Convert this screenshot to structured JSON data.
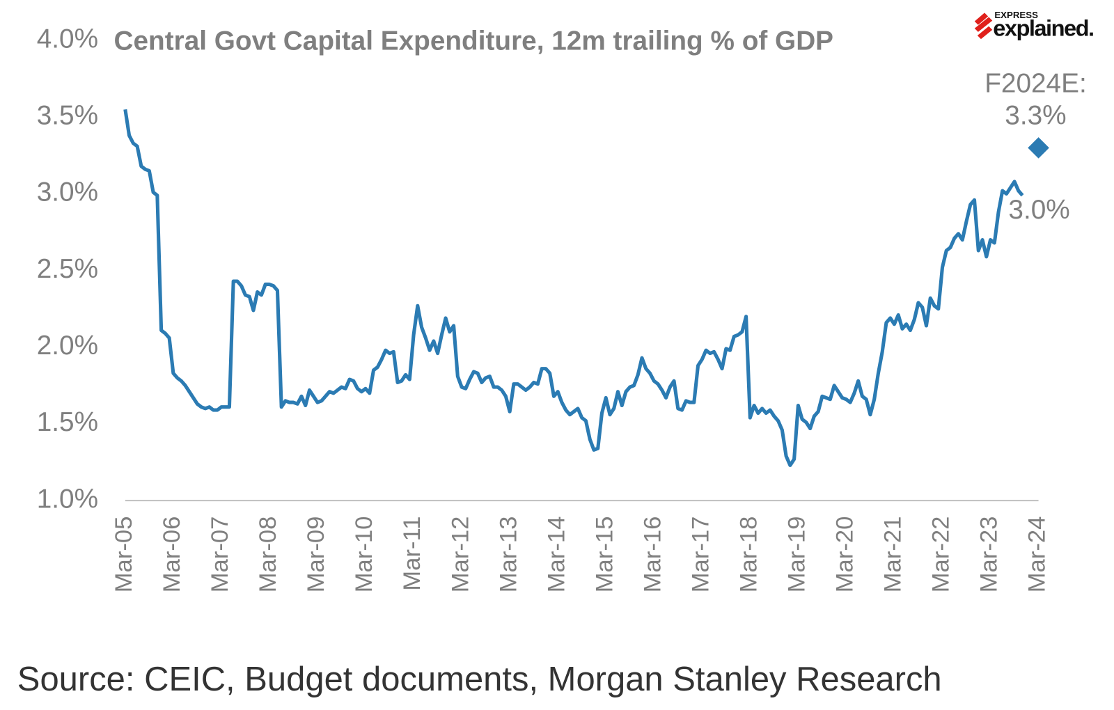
{
  "chart_data": {
    "type": "line",
    "title": "Central Govt Capital Expenditure, 12m trailing % of GDP",
    "source": "Source: CEIC, Budget documents, Morgan Stanley Research",
    "logo": {
      "top": "EXPRESS",
      "main": "explained."
    },
    "annotations": [
      "F2024E:",
      "3.3%",
      "3.0%"
    ],
    "ylim": [
      1.0,
      4.0
    ],
    "yticks": [
      {
        "value": 1.0,
        "label": "1.0%"
      },
      {
        "value": 1.5,
        "label": "1.5%"
      },
      {
        "value": 2.0,
        "label": "2.0%"
      },
      {
        "value": 2.5,
        "label": "2.5%"
      },
      {
        "value": 3.0,
        "label": "3.0%"
      },
      {
        "value": 3.5,
        "label": "3.5%"
      },
      {
        "value": 4.0,
        "label": "4.0%"
      }
    ],
    "categories": [
      "Mar-05",
      null,
      null,
      null,
      null,
      null,
      null,
      null,
      null,
      null,
      null,
      null,
      "Mar-06",
      null,
      null,
      null,
      null,
      null,
      null,
      null,
      null,
      null,
      null,
      null,
      "Mar-07",
      null,
      null,
      null,
      null,
      null,
      null,
      null,
      null,
      null,
      null,
      null,
      "Mar-08",
      null,
      null,
      null,
      null,
      null,
      null,
      null,
      null,
      null,
      null,
      null,
      "Mar-09",
      null,
      null,
      null,
      null,
      null,
      null,
      null,
      null,
      null,
      null,
      null,
      "Mar-10",
      null,
      null,
      null,
      null,
      null,
      null,
      null,
      null,
      null,
      null,
      null,
      "Mar-11",
      null,
      null,
      null,
      null,
      null,
      null,
      null,
      null,
      null,
      null,
      null,
      "Mar-12",
      null,
      null,
      null,
      null,
      null,
      null,
      null,
      null,
      null,
      null,
      null,
      "Mar-13",
      null,
      null,
      null,
      null,
      null,
      null,
      null,
      null,
      null,
      null,
      null,
      "Mar-14",
      null,
      null,
      null,
      null,
      null,
      null,
      null,
      null,
      null,
      null,
      null,
      "Mar-15",
      null,
      null,
      null,
      null,
      null,
      null,
      null,
      null,
      null,
      null,
      null,
      "Mar-16",
      null,
      null,
      null,
      null,
      null,
      null,
      null,
      null,
      null,
      null,
      null,
      "Mar-17",
      null,
      null,
      null,
      null,
      null,
      null,
      null,
      null,
      null,
      null,
      null,
      "Mar-18",
      null,
      null,
      null,
      null,
      null,
      null,
      null,
      null,
      null,
      null,
      null,
      "Mar-19",
      null,
      null,
      null,
      null,
      null,
      null,
      null,
      null,
      null,
      null,
      null,
      "Mar-20",
      null,
      null,
      null,
      null,
      null,
      null,
      null,
      null,
      null,
      null,
      null,
      "Mar-21",
      null,
      null,
      null,
      null,
      null,
      null,
      null,
      null,
      null,
      null,
      null,
      "Mar-22",
      null,
      null,
      null,
      null,
      null,
      null,
      null,
      null,
      null,
      null,
      null,
      "Mar-23",
      null,
      null,
      null,
      null,
      null,
      null,
      null,
      null,
      null,
      null,
      null,
      "Mar-24"
    ],
    "series": [
      {
        "color": "#2b7bb3",
        "dashed": false,
        "values": [
          3.55,
          3.38,
          3.33,
          3.31,
          3.18,
          3.16,
          3.15,
          3.01,
          2.99,
          2.11,
          2.09,
          2.06,
          1.83,
          1.8,
          1.78,
          1.75,
          1.71,
          1.67,
          1.63,
          1.61,
          1.6,
          1.61,
          1.59,
          1.59,
          1.61,
          1.61,
          1.61,
          2.43,
          2.43,
          2.4,
          2.34,
          2.33,
          2.24,
          2.36,
          2.34,
          2.41,
          2.41,
          2.4,
          2.37,
          1.61,
          1.65,
          1.64,
          1.64,
          1.63,
          1.68,
          1.62,
          1.72,
          1.68,
          1.64,
          1.65,
          1.68,
          1.71,
          1.7,
          1.72,
          1.74,
          1.73,
          1.79,
          1.78,
          1.73,
          1.71,
          1.73,
          1.7,
          1.85,
          1.87,
          1.92,
          1.98,
          1.96,
          1.97,
          1.77,
          1.78,
          1.82,
          1.79,
          2.08,
          2.27,
          2.13,
          2.06,
          1.98,
          2.04,
          1.96,
          2.08,
          2.19,
          2.1,
          2.14,
          1.81,
          1.74,
          1.73,
          1.79,
          1.84,
          1.83,
          1.77,
          1.8,
          1.81,
          1.74,
          1.74,
          1.72,
          1.68,
          1.58,
          1.76,
          1.76,
          1.74,
          1.72,
          1.74,
          1.77,
          1.76,
          1.86,
          1.86,
          1.83,
          1.68,
          1.71,
          1.64,
          1.59,
          1.56,
          1.58,
          1.6,
          1.54,
          1.52,
          1.4,
          1.33,
          1.34,
          1.57,
          1.67,
          1.56,
          1.6,
          1.71,
          1.62,
          1.71,
          1.74,
          1.75,
          1.82,
          1.93,
          1.86,
          1.83,
          1.78,
          1.76,
          1.72,
          1.67,
          1.74,
          1.78,
          1.6,
          1.59,
          1.65,
          1.64,
          1.64,
          1.88,
          1.92,
          1.98,
          1.96,
          1.97,
          1.92,
          1.86,
          1.99,
          1.98,
          2.07,
          2.08,
          2.1,
          2.2,
          1.54,
          1.62,
          1.57,
          1.6,
          1.57,
          1.59,
          1.55,
          1.52,
          1.46,
          1.29,
          1.23,
          1.27,
          1.62,
          1.53,
          1.51,
          1.47,
          1.55,
          1.58,
          1.68,
          1.67,
          1.66,
          1.75,
          1.71,
          1.67,
          1.66,
          1.64,
          1.7,
          1.78,
          1.68,
          1.66,
          1.56,
          1.66,
          1.83,
          1.97,
          2.16,
          2.19,
          2.15,
          2.21,
          2.12,
          2.15,
          2.11,
          2.18,
          2.29,
          2.26,
          2.14,
          2.32,
          2.27,
          2.25,
          2.52,
          2.63,
          2.65,
          2.71,
          2.74,
          2.7,
          2.82,
          2.93,
          2.96,
          2.63,
          2.7,
          2.59,
          2.7,
          2.68,
          2.88,
          3.02,
          3.0,
          3.04,
          3.08,
          3.02,
          2.99,
          null,
          null,
          null,
          null
        ]
      },
      {
        "color": "#2b7bb3",
        "dashed": true,
        "marker": "diamond",
        "values": [
          null,
          null,
          null,
          null,
          null,
          null,
          null,
          null,
          null,
          null,
          null,
          null,
          null,
          null,
          null,
          null,
          null,
          null,
          null,
          null,
          null,
          null,
          null,
          null,
          null,
          null,
          null,
          null,
          null,
          null,
          null,
          null,
          null,
          null,
          null,
          null,
          null,
          null,
          null,
          null,
          null,
          null,
          null,
          null,
          null,
          null,
          null,
          null,
          null,
          null,
          null,
          null,
          null,
          null,
          null,
          null,
          null,
          null,
          null,
          null,
          null,
          null,
          null,
          null,
          null,
          null,
          null,
          null,
          null,
          null,
          null,
          null,
          null,
          null,
          null,
          null,
          null,
          null,
          null,
          null,
          null,
          null,
          null,
          null,
          null,
          null,
          null,
          null,
          null,
          null,
          null,
          null,
          null,
          null,
          null,
          null,
          null,
          null,
          null,
          null,
          null,
          null,
          null,
          null,
          null,
          null,
          null,
          null,
          null,
          null,
          null,
          null,
          null,
          null,
          null,
          null,
          null,
          null,
          null,
          null,
          null,
          null,
          null,
          null,
          null,
          null,
          null,
          null,
          null,
          null,
          null,
          null,
          null,
          null,
          null,
          null,
          null,
          null,
          null,
          null,
          null,
          null,
          null,
          null,
          null,
          null,
          null,
          null,
          null,
          null,
          null,
          null,
          null,
          null,
          null,
          null,
          null,
          null,
          null,
          null,
          null,
          null,
          null,
          null,
          null,
          null,
          null,
          null,
          null,
          null,
          null,
          null,
          null,
          null,
          null,
          null,
          null,
          null,
          null,
          null,
          null,
          null,
          null,
          null,
          null,
          null,
          null,
          null,
          null,
          null,
          null,
          null,
          null,
          null,
          null,
          null,
          null,
          null,
          null,
          null,
          null,
          null,
          null,
          null,
          null,
          null,
          null,
          null,
          null,
          null,
          null,
          null,
          null,
          null,
          null,
          null,
          null,
          null,
          null,
          null,
          null,
          null,
          null,
          null,
          2.99,
          null,
          null,
          null,
          3.3
        ]
      }
    ]
  }
}
